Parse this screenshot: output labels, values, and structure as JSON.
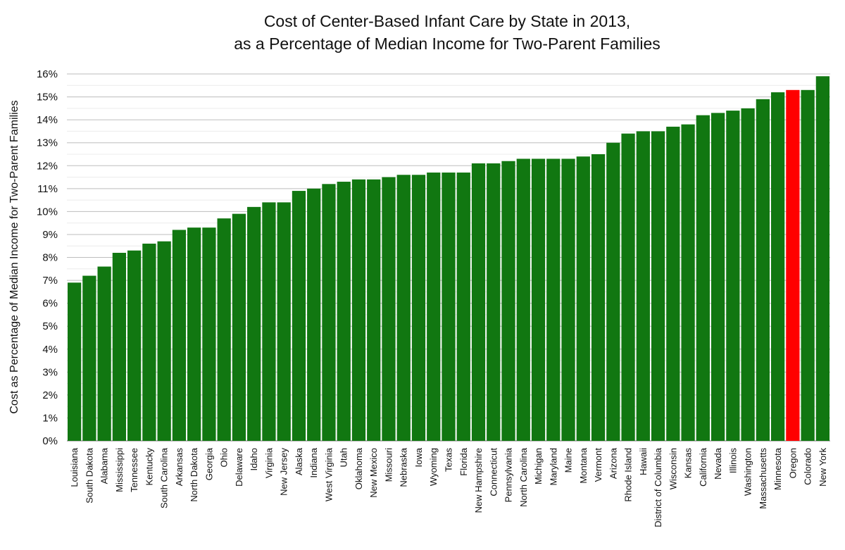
{
  "chart_data": {
    "type": "bar",
    "title_lines": [
      "Cost of Center-Based Infant Care by State in 2013,",
      "as a Percentage of Median Income for Two-Parent Families"
    ],
    "xlabel": "",
    "ylabel": "Cost as Percentage of Median Income for Two-Parent Families",
    "ylim": [
      0,
      16
    ],
    "y_ticks": [
      "0%",
      "1%",
      "2%",
      "3%",
      "4%",
      "5%",
      "6%",
      "7%",
      "8%",
      "9%",
      "10%",
      "11%",
      "12%",
      "13%",
      "14%",
      "15%",
      "16%"
    ],
    "grid": true,
    "legend": "none",
    "bar_color": "#117711",
    "highlight_color": "#ff0000",
    "highlight_category": "Oregon",
    "categories": [
      "Louisiana",
      "South Dakota",
      "Alabama",
      "Mississippi",
      "Tennessee",
      "Kentucky",
      "South Carolina",
      "Arkansas",
      "North Dakota",
      "Georgia",
      "Ohio",
      "Delaware",
      "Idaho",
      "Virginia",
      "New Jersey",
      "Alaska",
      "Indiana",
      "West Virginia",
      "Utah",
      "Oklahoma",
      "New Mexico",
      "Missouri",
      "Nebraska",
      "Iowa",
      "Wyoming",
      "Texas",
      "Florida",
      "New Hampshire",
      "Connecticut",
      "Pennsylvania",
      "North Carolina",
      "Michigan",
      "Maryland",
      "Maine",
      "Montana",
      "Vermont",
      "Arizona",
      "Rhode Island",
      "Hawaii",
      "District of Columbia",
      "Wisconsin",
      "Kansas",
      "California",
      "Nevada",
      "Illinois",
      "Washington",
      "Massachusetts",
      "Minnesota",
      "Oregon",
      "Colorado",
      "New York"
    ],
    "values": [
      6.9,
      7.2,
      7.6,
      8.2,
      8.3,
      8.6,
      8.7,
      9.2,
      9.3,
      9.3,
      9.7,
      9.9,
      10.2,
      10.4,
      10.4,
      10.9,
      11.0,
      11.2,
      11.3,
      11.4,
      11.4,
      11.5,
      11.6,
      11.6,
      11.7,
      11.7,
      11.7,
      12.1,
      12.1,
      12.2,
      12.3,
      12.3,
      12.3,
      12.3,
      12.4,
      12.5,
      13.0,
      13.4,
      13.5,
      13.5,
      13.7,
      13.8,
      14.2,
      14.3,
      14.4,
      14.5,
      14.9,
      15.2,
      15.3,
      15.3,
      15.9
    ]
  }
}
